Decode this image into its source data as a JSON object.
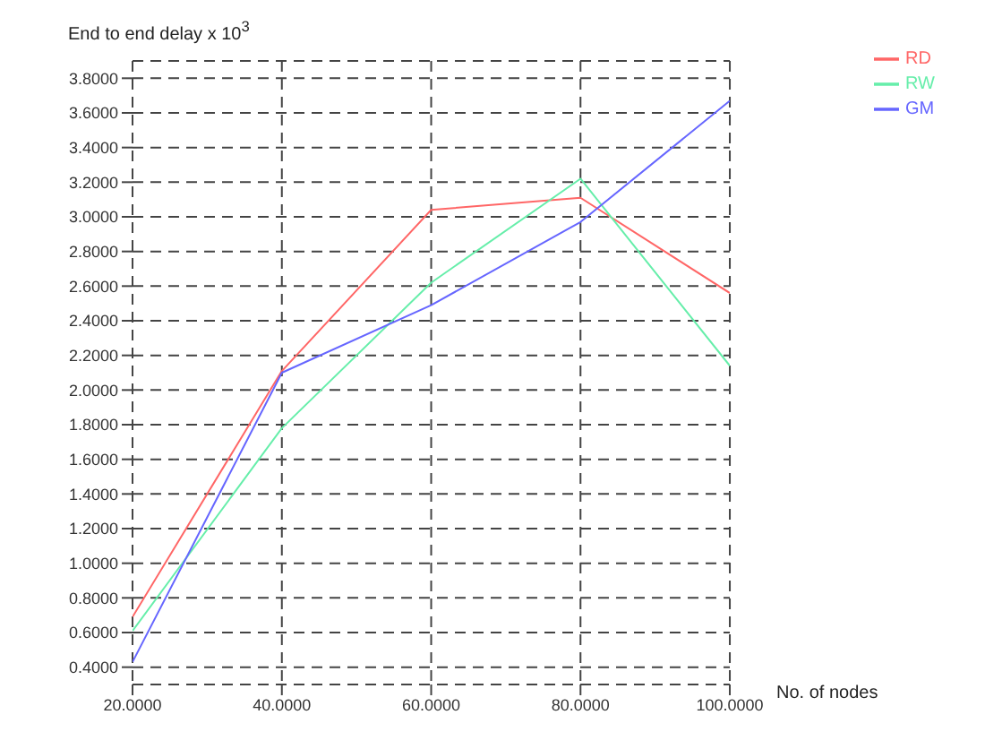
{
  "chart_data": {
    "type": "line",
    "ylabel": "End to end delay x 10$^{3}$",
    "xlabel": "No. of nodes",
    "x": [
      20,
      40,
      60,
      80,
      100
    ],
    "series": [
      {
        "name": "RD",
        "color": "#ff6666",
        "values": [
          0.69,
          2.11,
          3.04,
          3.11,
          2.56
        ]
      },
      {
        "name": "RW",
        "color": "#66eeaa",
        "values": [
          0.61,
          1.78,
          2.62,
          3.22,
          2.14
        ]
      },
      {
        "name": "GM",
        "color": "#6666ff",
        "values": [
          0.43,
          2.1,
          2.49,
          2.97,
          3.67
        ]
      }
    ],
    "xlim": [
      20,
      100
    ],
    "ylim": [
      0.3,
      3.9
    ],
    "xticks": [
      {
        "value": 20,
        "label": "20.0000"
      },
      {
        "value": 40,
        "label": "40.0000"
      },
      {
        "value": 60,
        "label": "60.0000"
      },
      {
        "value": 80,
        "label": "80.0000"
      },
      {
        "value": 100,
        "label": "100.0000"
      }
    ],
    "yticks": [
      {
        "value": 0.4,
        "label": "0.4000"
      },
      {
        "value": 0.6,
        "label": "0.6000"
      },
      {
        "value": 0.8,
        "label": "0.8000"
      },
      {
        "value": 1,
        "label": "1.0000"
      },
      {
        "value": 1.2,
        "label": "1.2000"
      },
      {
        "value": 1.4,
        "label": "1.4000"
      },
      {
        "value": 1.6,
        "label": "1.6000"
      },
      {
        "value": 1.8,
        "label": "1.8000"
      },
      {
        "value": 2,
        "label": "2.0000"
      },
      {
        "value": 2.2,
        "label": "2.2000"
      },
      {
        "value": 2.4,
        "label": "2.4000"
      },
      {
        "value": 2.6,
        "label": "2.6000"
      },
      {
        "value": 2.8,
        "label": "2.8000"
      },
      {
        "value": 3,
        "label": "3.0000"
      },
      {
        "value": 3.2,
        "label": "3.2000"
      },
      {
        "value": 3.4,
        "label": "3.4000"
      },
      {
        "value": 3.6,
        "label": "3.6000"
      },
      {
        "value": 3.8,
        "label": "3.8000"
      }
    ],
    "grid": true,
    "legend": "top right",
    "marker": "none",
    "line_style": "solid"
  }
}
